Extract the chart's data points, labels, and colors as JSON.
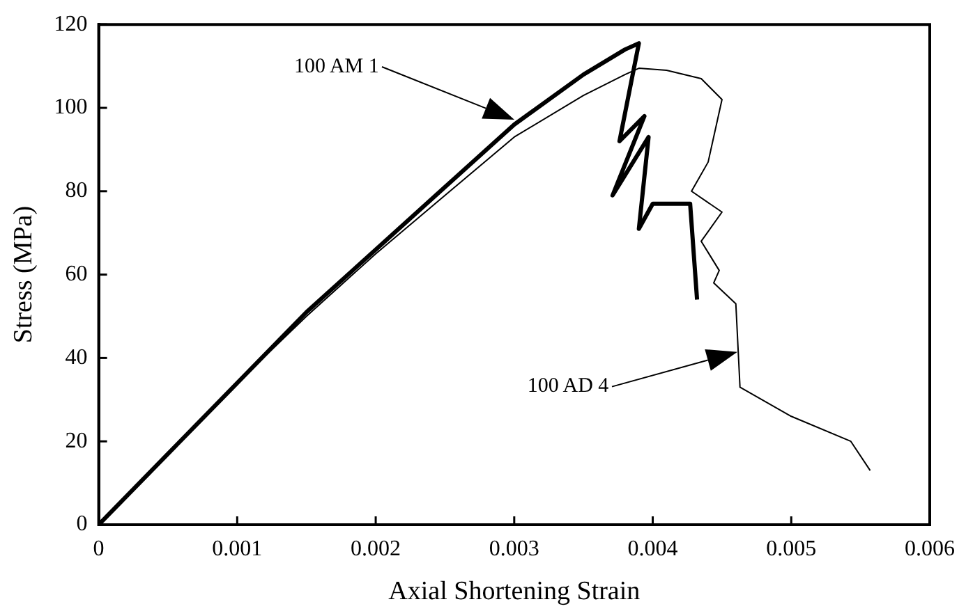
{
  "chart_data": {
    "type": "line",
    "xlabel": "Axial Shortening Strain",
    "ylabel": "Stress (MPa)",
    "xlim": [
      0,
      0.006
    ],
    "xticks": [
      0,
      0.001,
      0.002,
      0.003,
      0.004,
      0.005,
      0.006
    ],
    "ylim": [
      0,
      120
    ],
    "yticks": [
      0,
      20,
      40,
      60,
      80,
      100,
      120
    ],
    "grid": false,
    "legend": false,
    "marker": "none",
    "line_style": "solid",
    "series": [
      {
        "color": "#000000",
        "x": [
          0,
          0.0005,
          0.001,
          0.0015,
          0.002,
          0.0025,
          0.003,
          0.0035,
          0.0038,
          0.0039,
          0.00376,
          0.00394,
          0.00371,
          0.00397,
          0.0039,
          0.004,
          0.00427,
          0.00432
        ],
        "values": [
          0,
          17,
          34,
          51,
          66,
          81,
          96,
          108,
          114,
          115.5,
          92,
          98,
          79,
          93,
          71,
          77,
          77,
          54
        ]
      },
      {
        "color": "#000000",
        "x": [
          0,
          0.0005,
          0.001,
          0.0015,
          0.002,
          0.0025,
          0.003,
          0.0035,
          0.0038,
          0.0039,
          0.0041,
          0.00435,
          0.0045,
          0.0044,
          0.00428,
          0.0045,
          0.00435,
          0.00448,
          0.00444,
          0.0046,
          0.00463,
          0.005,
          0.00543,
          0.00557
        ],
        "values": [
          0,
          17,
          34,
          50,
          65,
          79,
          93,
          103,
          108,
          109.5,
          109,
          107,
          102,
          87,
          80,
          75,
          68,
          61,
          58,
          53,
          33,
          26,
          20,
          13
        ]
      }
    ],
    "annotations": [
      "100 AM 1",
      "100 AD 4"
    ]
  }
}
